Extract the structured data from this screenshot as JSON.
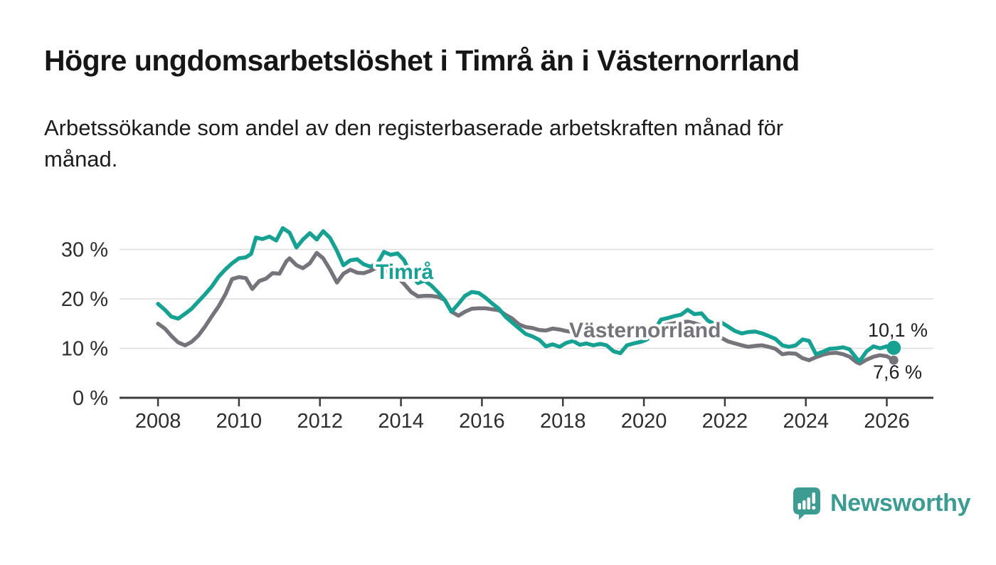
{
  "header": {
    "title": "Högre ungdomsarbetslöshet i Timrå än i Västernorrland",
    "subtitle": "Arbetssökande som andel av den registerbaserade arbetskraften månad för månad."
  },
  "chart_data": {
    "type": "line",
    "title": "Högre ungdomsarbetslöshet i Timrå än i Västernorrland",
    "xlabel": "",
    "ylabel": "Arbetssökande som andel av den registerbaserade arbetskraften, %",
    "grid": "horizontal",
    "legend_position": "inline-labels-on-lines",
    "x_axis": {
      "lim": [
        2007.05,
        2027.15
      ],
      "ticks": [
        2008,
        2010,
        2012,
        2014,
        2016,
        2018,
        2020,
        2022,
        2024,
        2026
      ],
      "tick_labels": [
        "2008",
        "2010",
        "2012",
        "2014",
        "2016",
        "2018",
        "2020",
        "2022",
        "2024",
        "2026"
      ]
    },
    "y_axis": {
      "lim": [
        0,
        36
      ],
      "ticks": [
        0,
        10,
        20,
        30
      ],
      "tick_labels": [
        "0 %",
        "10 %",
        "20 %",
        "30 %"
      ],
      "gridlines": [
        10,
        20,
        30
      ]
    },
    "series": [
      {
        "name": "Timrå",
        "color": "#16a192",
        "end_label": "10,1 %",
        "end_value": 10.1,
        "points": [
          [
            2008.0,
            19.0
          ],
          [
            2008.17,
            17.8
          ],
          [
            2008.33,
            16.4
          ],
          [
            2008.5,
            16.0
          ],
          [
            2008.67,
            17.0
          ],
          [
            2008.83,
            18.0
          ],
          [
            2009.0,
            19.5
          ],
          [
            2009.17,
            21.0
          ],
          [
            2009.33,
            22.5
          ],
          [
            2009.5,
            24.5
          ],
          [
            2009.67,
            26.0
          ],
          [
            2009.83,
            27.2
          ],
          [
            2010.0,
            28.2
          ],
          [
            2010.17,
            28.4
          ],
          [
            2010.3,
            29.1
          ],
          [
            2010.42,
            32.4
          ],
          [
            2010.58,
            32.1
          ],
          [
            2010.75,
            32.6
          ],
          [
            2010.92,
            31.8
          ],
          [
            2011.08,
            34.3
          ],
          [
            2011.25,
            33.4
          ],
          [
            2011.42,
            30.4
          ],
          [
            2011.58,
            32.0
          ],
          [
            2011.75,
            33.3
          ],
          [
            2011.92,
            32.0
          ],
          [
            2012.08,
            33.7
          ],
          [
            2012.25,
            32.3
          ],
          [
            2012.42,
            29.7
          ],
          [
            2012.58,
            26.8
          ],
          [
            2012.75,
            27.8
          ],
          [
            2012.92,
            28.0
          ],
          [
            2013.08,
            27.0
          ],
          [
            2013.25,
            26.5
          ],
          [
            2013.42,
            27.2
          ],
          [
            2013.58,
            29.5
          ],
          [
            2013.75,
            28.9
          ],
          [
            2013.92,
            29.2
          ],
          [
            2014.08,
            27.8
          ],
          [
            2014.25,
            24.8
          ],
          [
            2014.42,
            23.2
          ],
          [
            2014.58,
            23.7
          ],
          [
            2014.75,
            22.7
          ],
          [
            2014.92,
            21.3
          ],
          [
            2015.08,
            19.8
          ],
          [
            2015.25,
            17.4
          ],
          [
            2015.42,
            19.0
          ],
          [
            2015.58,
            20.6
          ],
          [
            2015.75,
            21.4
          ],
          [
            2015.92,
            21.2
          ],
          [
            2016.08,
            20.3
          ],
          [
            2016.25,
            19.1
          ],
          [
            2016.42,
            18.0
          ],
          [
            2016.58,
            16.4
          ],
          [
            2016.75,
            15.2
          ],
          [
            2016.92,
            14.0
          ],
          [
            2017.08,
            12.9
          ],
          [
            2017.25,
            12.4
          ],
          [
            2017.42,
            11.7
          ],
          [
            2017.58,
            10.4
          ],
          [
            2017.75,
            10.8
          ],
          [
            2017.92,
            10.3
          ],
          [
            2018.08,
            11.1
          ],
          [
            2018.25,
            11.5
          ],
          [
            2018.42,
            10.7
          ],
          [
            2018.58,
            11.0
          ],
          [
            2018.75,
            10.6
          ],
          [
            2018.92,
            10.9
          ],
          [
            2019.08,
            10.6
          ],
          [
            2019.25,
            9.4
          ],
          [
            2019.42,
            9.0
          ],
          [
            2019.58,
            10.6
          ],
          [
            2019.75,
            11.0
          ],
          [
            2019.92,
            11.3
          ],
          [
            2020.08,
            11.8
          ],
          [
            2020.25,
            13.5
          ],
          [
            2020.42,
            15.8
          ],
          [
            2020.58,
            16.1
          ],
          [
            2020.75,
            16.5
          ],
          [
            2020.92,
            16.8
          ],
          [
            2021.08,
            17.8
          ],
          [
            2021.25,
            16.9
          ],
          [
            2021.42,
            17.1
          ],
          [
            2021.58,
            15.6
          ],
          [
            2021.75,
            14.9
          ],
          [
            2021.92,
            15.2
          ],
          [
            2022.08,
            14.4
          ],
          [
            2022.25,
            13.5
          ],
          [
            2022.42,
            13.0
          ],
          [
            2022.58,
            13.3
          ],
          [
            2022.75,
            13.4
          ],
          [
            2022.92,
            13.0
          ],
          [
            2023.08,
            12.5
          ],
          [
            2023.25,
            11.9
          ],
          [
            2023.42,
            10.6
          ],
          [
            2023.58,
            10.3
          ],
          [
            2023.75,
            10.6
          ],
          [
            2023.92,
            11.8
          ],
          [
            2024.08,
            11.5
          ],
          [
            2024.25,
            8.8
          ],
          [
            2024.42,
            9.3
          ],
          [
            2024.58,
            9.9
          ],
          [
            2024.75,
            10.0
          ],
          [
            2024.92,
            10.2
          ],
          [
            2025.08,
            9.8
          ],
          [
            2025.25,
            8.0
          ],
          [
            2025.33,
            7.4
          ],
          [
            2025.5,
            9.4
          ],
          [
            2025.67,
            10.4
          ],
          [
            2025.83,
            10.0
          ],
          [
            2026.0,
            10.4
          ],
          [
            2026.17,
            10.1
          ]
        ]
      },
      {
        "name": "Västernorrland",
        "color": "#76747a",
        "end_label": "7,6 %",
        "end_value": 7.6,
        "points": [
          [
            2008.0,
            15.0
          ],
          [
            2008.17,
            14.0
          ],
          [
            2008.33,
            12.5
          ],
          [
            2008.5,
            11.2
          ],
          [
            2008.67,
            10.6
          ],
          [
            2008.83,
            11.3
          ],
          [
            2009.0,
            12.6
          ],
          [
            2009.17,
            14.5
          ],
          [
            2009.33,
            16.5
          ],
          [
            2009.5,
            18.5
          ],
          [
            2009.67,
            21.0
          ],
          [
            2009.83,
            24.0
          ],
          [
            2010.0,
            24.4
          ],
          [
            2010.17,
            24.2
          ],
          [
            2010.33,
            22.0
          ],
          [
            2010.5,
            23.6
          ],
          [
            2010.67,
            24.1
          ],
          [
            2010.83,
            25.2
          ],
          [
            2011.0,
            25.1
          ],
          [
            2011.17,
            27.6
          ],
          [
            2011.25,
            28.2
          ],
          [
            2011.42,
            26.8
          ],
          [
            2011.58,
            26.2
          ],
          [
            2011.75,
            27.2
          ],
          [
            2011.92,
            29.3
          ],
          [
            2012.08,
            28.2
          ],
          [
            2012.25,
            25.9
          ],
          [
            2012.42,
            23.3
          ],
          [
            2012.58,
            25.1
          ],
          [
            2012.75,
            25.9
          ],
          [
            2012.92,
            25.3
          ],
          [
            2013.08,
            25.2
          ],
          [
            2013.25,
            25.7
          ],
          [
            2013.42,
            26.4
          ],
          [
            2013.58,
            26.0
          ],
          [
            2013.75,
            25.3
          ],
          [
            2013.92,
            24.4
          ],
          [
            2014.08,
            23.0
          ],
          [
            2014.25,
            21.4
          ],
          [
            2014.42,
            20.5
          ],
          [
            2014.58,
            20.6
          ],
          [
            2014.75,
            20.6
          ],
          [
            2014.92,
            20.4
          ],
          [
            2015.08,
            19.8
          ],
          [
            2015.25,
            17.4
          ],
          [
            2015.42,
            16.6
          ],
          [
            2015.58,
            17.4
          ],
          [
            2015.75,
            18.0
          ],
          [
            2015.92,
            18.1
          ],
          [
            2016.08,
            18.1
          ],
          [
            2016.25,
            17.9
          ],
          [
            2016.42,
            17.7
          ],
          [
            2016.58,
            16.8
          ],
          [
            2016.75,
            16.0
          ],
          [
            2016.92,
            14.8
          ],
          [
            2017.08,
            14.3
          ],
          [
            2017.25,
            14.1
          ],
          [
            2017.42,
            13.7
          ],
          [
            2017.58,
            13.6
          ],
          [
            2017.75,
            14.0
          ],
          [
            2017.92,
            13.8
          ],
          [
            2018.08,
            13.5
          ],
          [
            2018.25,
            13.3
          ],
          [
            2018.42,
            13.0
          ],
          [
            2018.58,
            12.7
          ],
          [
            2018.75,
            13.2
          ],
          [
            2018.92,
            13.3
          ],
          [
            2019.08,
            13.1
          ],
          [
            2019.25,
            12.8
          ],
          [
            2019.42,
            12.5
          ],
          [
            2019.58,
            12.6
          ],
          [
            2019.75,
            12.8
          ],
          [
            2019.92,
            13.0
          ],
          [
            2020.08,
            13.3
          ],
          [
            2020.25,
            13.9
          ],
          [
            2020.42,
            14.5
          ],
          [
            2020.58,
            14.8
          ],
          [
            2020.75,
            15.1
          ],
          [
            2020.92,
            15.3
          ],
          [
            2021.08,
            15.4
          ],
          [
            2021.25,
            15.1
          ],
          [
            2021.42,
            14.6
          ],
          [
            2021.58,
            14.0
          ],
          [
            2021.75,
            13.2
          ],
          [
            2021.92,
            12.1
          ],
          [
            2022.08,
            11.4
          ],
          [
            2022.25,
            11.0
          ],
          [
            2022.42,
            10.6
          ],
          [
            2022.58,
            10.3
          ],
          [
            2022.75,
            10.5
          ],
          [
            2022.92,
            10.6
          ],
          [
            2023.08,
            10.3
          ],
          [
            2023.25,
            9.9
          ],
          [
            2023.42,
            8.8
          ],
          [
            2023.58,
            9.0
          ],
          [
            2023.75,
            8.9
          ],
          [
            2023.92,
            8.0
          ],
          [
            2024.08,
            7.6
          ],
          [
            2024.25,
            8.2
          ],
          [
            2024.42,
            8.7
          ],
          [
            2024.58,
            9.0
          ],
          [
            2024.75,
            9.1
          ],
          [
            2024.92,
            8.8
          ],
          [
            2025.08,
            8.3
          ],
          [
            2025.25,
            7.2
          ],
          [
            2025.33,
            6.9
          ],
          [
            2025.5,
            7.7
          ],
          [
            2025.67,
            8.3
          ],
          [
            2025.83,
            8.6
          ],
          [
            2026.0,
            8.4
          ],
          [
            2026.17,
            7.6
          ]
        ]
      }
    ]
  },
  "branding": {
    "logo_text": "Newsworthy",
    "logo_icon": "bar-chart-speech-bubble",
    "color": "#3d9c91"
  }
}
